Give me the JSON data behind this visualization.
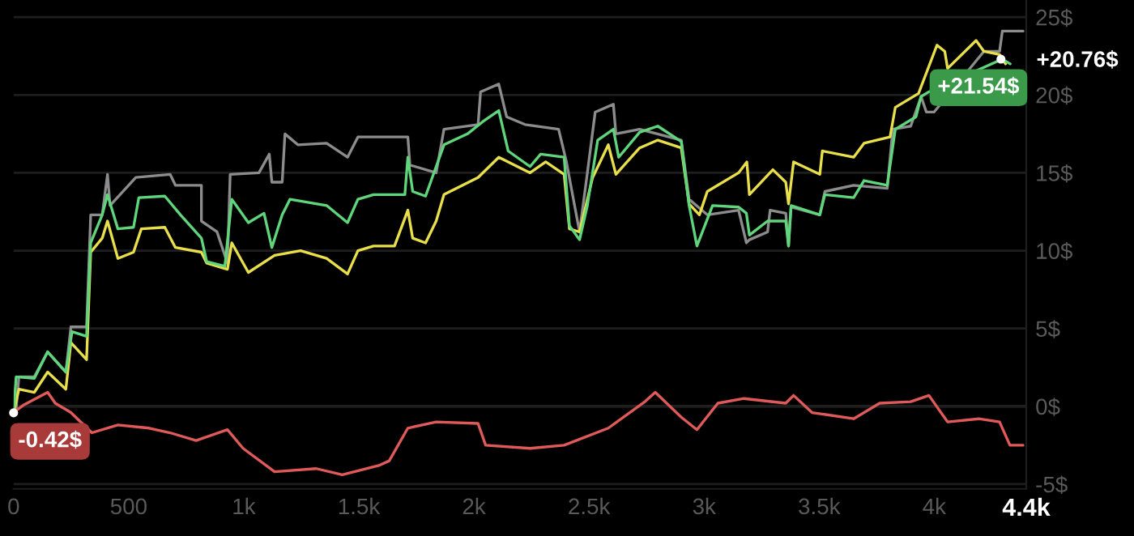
{
  "chart_data": {
    "type": "line",
    "xlim": [
      0,
      4400
    ],
    "xticks": [
      {
        "value": 0,
        "label": "0"
      },
      {
        "value": 500,
        "label": "500"
      },
      {
        "value": 1000,
        "label": "1k"
      },
      {
        "value": 1500,
        "label": "1.5k"
      },
      {
        "value": 2000,
        "label": "2k"
      },
      {
        "value": 2500,
        "label": "2.5k"
      },
      {
        "value": 3000,
        "label": "3k"
      },
      {
        "value": 3500,
        "label": "3.5k"
      },
      {
        "value": 4000,
        "label": "4k"
      },
      {
        "value": 4400,
        "label": "4.4k"
      }
    ],
    "ylim": [
      -5.3,
      26.1
    ],
    "yticks": [
      {
        "value": -5,
        "label": "-5$"
      },
      {
        "value": 0,
        "label": "0$"
      },
      {
        "value": 5,
        "label": "5$"
      },
      {
        "value": 10,
        "label": "10$"
      },
      {
        "value": 15,
        "label": "15$"
      },
      {
        "value": 20,
        "label": "20$"
      },
      {
        "value": 25,
        "label": "25$"
      }
    ],
    "grid": "y",
    "legend": false,
    "ref_lines": [
      {
        "axis": "y",
        "value": 0,
        "label": null,
        "color": "#4a4a4a"
      }
    ],
    "annotations": [
      {
        "text": "-0.42$",
        "x": 0,
        "y": -0.42
      },
      {
        "text": "+21.54$",
        "x": 4290,
        "y": 22.3
      },
      "+20.76$"
    ],
    "series": [
      {
        "color": "#8c8c8c",
        "x": [
          0,
          11,
          23,
          90,
          148,
          227,
          249,
          317,
          335,
          385,
          408,
          419,
          531,
          680,
          703,
          816,
          816,
          884,
          929,
          941,
          1066,
          1111,
          1122,
          1167,
          1179,
          1235,
          1360,
          1451,
          1496,
          1564,
          1713,
          1722,
          1836,
          1870,
          2018,
          2029,
          2108,
          2142,
          2222,
          2368,
          2402,
          2459,
          2493,
          2527,
          2606,
          2617,
          2720,
          2901,
          2935,
          3014,
          3150,
          3184,
          3197,
          3276,
          3287,
          3355,
          3367,
          3378,
          3503,
          3525,
          3650,
          3796,
          3820,
          3898,
          3943,
          3966,
          3999,
          4216,
          4284,
          4296,
          4386
        ],
        "values": [
          -0.4,
          -0.2,
          1.9,
          1.9,
          3.5,
          2.2,
          5.1,
          5.1,
          12.3,
          12.3,
          14.9,
          12.9,
          14.7,
          14.9,
          14.2,
          14.2,
          11.9,
          11.2,
          9.2,
          14.9,
          15.0,
          16.2,
          14.4,
          14.4,
          17.5,
          16.8,
          16.9,
          16.0,
          17.3,
          17.3,
          17.3,
          15.5,
          15.0,
          17.8,
          18.1,
          20.2,
          20.7,
          18.6,
          18.1,
          17.8,
          15.7,
          11.2,
          15.0,
          18.9,
          19.4,
          17.5,
          17.8,
          17.1,
          13.3,
          12.3,
          12.6,
          10.5,
          10.7,
          11.2,
          12.6,
          12.4,
          10.3,
          12.8,
          12.3,
          13.8,
          14.2,
          14.0,
          17.8,
          18.0,
          19.9,
          18.9,
          18.9,
          22.8,
          22.8,
          24.1,
          24.1
        ]
      },
      {
        "color": "#e8df4a",
        "x": [
          0,
          23,
          90,
          148,
          227,
          249,
          317,
          335,
          385,
          408,
          453,
          521,
          555,
          657,
          703,
          816,
          839,
          929,
          948,
          1020,
          1134,
          1247,
          1360,
          1451,
          1496,
          1564,
          1655,
          1713,
          1734,
          1790,
          1836,
          1870,
          2018,
          2108,
          2244,
          2312,
          2392,
          2415,
          2459,
          2516,
          2584,
          2617,
          2720,
          2799,
          2901,
          2935,
          2980,
          3014,
          3150,
          3186,
          3197,
          3299,
          3355,
          3367,
          3389,
          3503,
          3514,
          3650,
          3695,
          3808,
          3831,
          3932,
          4012,
          4046,
          4058,
          4182,
          4216,
          4284,
          4310
        ],
        "values": [
          -0.4,
          1.1,
          0.9,
          2.2,
          1.1,
          4.1,
          3.0,
          9.9,
          10.8,
          11.9,
          9.5,
          9.9,
          11.4,
          11.5,
          10.2,
          9.9,
          9.2,
          8.8,
          10.5,
          8.6,
          9.7,
          10.0,
          9.5,
          8.5,
          10.0,
          10.3,
          10.3,
          12.6,
          10.8,
          10.5,
          11.9,
          13.6,
          14.7,
          16.0,
          15.0,
          15.7,
          14.9,
          11.4,
          11.2,
          14.7,
          16.8,
          14.9,
          16.6,
          17.1,
          16.6,
          13.0,
          12.3,
          13.8,
          15.0,
          15.7,
          13.6,
          15.2,
          14.4,
          13.0,
          15.7,
          14.9,
          16.4,
          16.0,
          16.9,
          17.3,
          19.2,
          20.1,
          23.2,
          22.8,
          21.7,
          23.5,
          22.8,
          22.6,
          22.0
        ]
      },
      {
        "color": "#5fd67b",
        "x": [
          0,
          11,
          90,
          148,
          227,
          254,
          317,
          335,
          385,
          408,
          453,
          521,
          544,
          657,
          725,
          816,
          839,
          918,
          948,
          1020,
          1088,
          1122,
          1167,
          1201,
          1360,
          1451,
          1496,
          1564,
          1700,
          1713,
          1734,
          1790,
          1870,
          1972,
          2040,
          2108,
          2149,
          2244,
          2290,
          2392,
          2415,
          2459,
          2493,
          2538,
          2606,
          2629,
          2720,
          2799,
          2901,
          2935,
          2969,
          3037,
          3150,
          3184,
          3197,
          3276,
          3355,
          3367,
          3378,
          3503,
          3525,
          3650,
          3695,
          3796,
          3831,
          3921,
          3943,
          3977,
          4296,
          4330
        ],
        "values": [
          -0.4,
          1.9,
          1.8,
          3.5,
          2.2,
          4.8,
          4.5,
          10.5,
          12.3,
          13.6,
          11.4,
          11.5,
          13.4,
          13.5,
          12.3,
          10.8,
          9.3,
          9.0,
          13.3,
          11.8,
          12.4,
          10.2,
          12.3,
          13.3,
          12.9,
          11.8,
          13.3,
          13.6,
          13.6,
          16.0,
          13.8,
          13.5,
          16.8,
          17.5,
          18.3,
          19.0,
          16.4,
          15.4,
          16.2,
          16.0,
          11.6,
          10.7,
          12.9,
          17.1,
          17.8,
          16.0,
          17.6,
          18.0,
          17.0,
          12.9,
          10.3,
          12.9,
          12.8,
          12.4,
          11.0,
          11.9,
          11.9,
          10.3,
          12.9,
          12.3,
          13.6,
          13.4,
          14.5,
          14.2,
          17.8,
          18.6,
          19.9,
          20.2,
          22.3,
          22.0
        ]
      },
      {
        "color": "#e05a5a",
        "x": [
          0,
          45,
          148,
          181,
          249,
          340,
          453,
          589,
          680,
          793,
          929,
          997,
          1134,
          1315,
          1428,
          1587,
          1632,
          1713,
          1836,
          2018,
          2051,
          2244,
          2392,
          2584,
          2743,
          2788,
          2901,
          2969,
          3060,
          3173,
          3355,
          3389,
          3469,
          3650,
          3763,
          3898,
          3977,
          4058,
          4193,
          4284,
          4329,
          4386
        ],
        "values": [
          -0.4,
          0.1,
          0.9,
          0.2,
          -0.4,
          -1.7,
          -1.2,
          -1.4,
          -1.7,
          -2.2,
          -1.5,
          -2.7,
          -4.2,
          -4.0,
          -4.4,
          -3.8,
          -3.5,
          -1.4,
          -1.0,
          -1.1,
          -2.5,
          -2.7,
          -2.5,
          -1.4,
          0.3,
          0.9,
          -0.7,
          -1.5,
          0.2,
          0.5,
          0.2,
          0.7,
          -0.4,
          -0.8,
          0.2,
          0.3,
          0.7,
          -1.0,
          -0.8,
          -1.0,
          -2.5,
          -2.5
        ]
      }
    ]
  }
}
